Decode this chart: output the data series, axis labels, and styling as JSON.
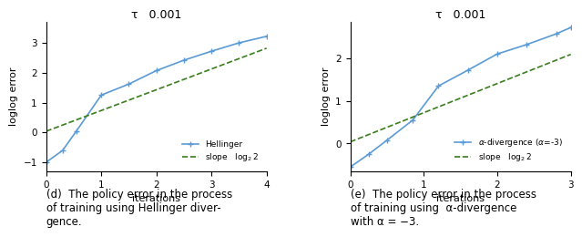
{
  "left": {
    "title": "τ   0.001",
    "xlabel": "iterations",
    "ylabel": "loglog error",
    "xlim": [
      0,
      4
    ],
    "ylim": [
      -1.3,
      3.7
    ],
    "xticks": [
      0,
      1,
      2,
      3,
      4
    ],
    "yticks": [
      -1,
      0,
      1,
      2,
      3
    ],
    "blue_x": [
      0,
      0.3,
      0.55,
      1.0,
      1.5,
      2.0,
      2.5,
      3.0,
      3.5,
      4.0
    ],
    "blue_y": [
      -1.0,
      -0.6,
      0.05,
      1.25,
      1.62,
      2.07,
      2.42,
      2.72,
      3.0,
      3.22
    ],
    "green_x": [
      0,
      4.0
    ],
    "green_y": [
      0.04,
      2.82
    ],
    "legend_label_blue": "Hellinger",
    "legend_label_green": "slope   $\\log_2 2$"
  },
  "right": {
    "title": "τ   0.001",
    "xlabel": "iterations",
    "ylabel": "loglog error",
    "xlim": [
      0,
      3
    ],
    "ylim": [
      -0.65,
      2.85
    ],
    "xticks": [
      0,
      1,
      2,
      3
    ],
    "yticks": [
      0,
      1,
      2
    ],
    "blue_x": [
      0,
      0.25,
      0.5,
      0.85,
      1.2,
      1.6,
      2.0,
      2.4,
      2.8,
      3.0
    ],
    "blue_y": [
      -0.55,
      -0.25,
      0.08,
      0.55,
      1.35,
      1.72,
      2.1,
      2.32,
      2.57,
      2.72
    ],
    "green_x": [
      0,
      3.0
    ],
    "green_y": [
      0.04,
      2.09
    ],
    "legend_label_blue": "$\\alpha$-divergence ($\\alpha$=-3)",
    "legend_label_green": "slope   $\\log_2 2$"
  },
  "caption_left": "(d)  The policy error in the process\nof training using Hellinger diver-\ngence.",
  "caption_right": "(e)  The policy error in the process\nof training using  α-divergence\nwith α = −3.",
  "blue_color": "#5b9bd5",
  "green_color": "#3a7d1e",
  "fig_bg": "#ffffff",
  "caption_fontsize": 8.5,
  "axis_fontsize": 8,
  "tick_fontsize": 7.5,
  "title_fontsize": 9
}
